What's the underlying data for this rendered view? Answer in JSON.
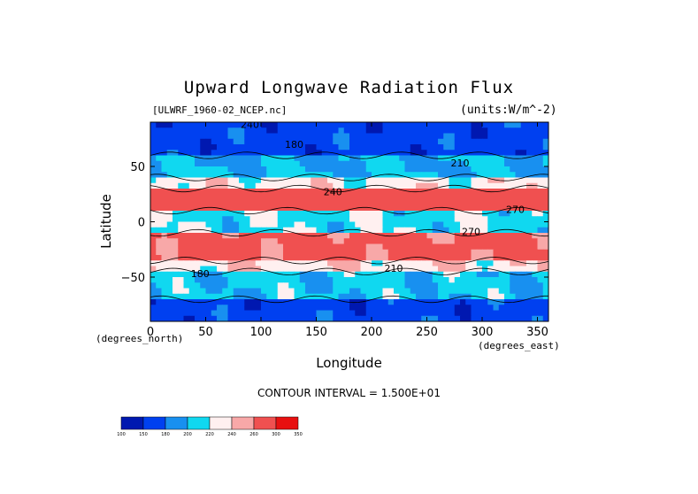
{
  "chart_data": {
    "type": "heatmap",
    "title": "Upward Longwave Radiation Flux",
    "source_label": "[ULWRF_1960-02_NCEP.nc]",
    "units_label": "(units:W/m^-2)",
    "xlabel": "Longitude",
    "ylabel": "Latitude",
    "x_unit_label": "(degrees_east)",
    "y_unit_label": "(degrees_north)",
    "xlim": [
      0,
      360
    ],
    "ylim": [
      -90,
      90
    ],
    "x_ticks": [
      "0",
      "50",
      "100",
      "150",
      "200",
      "250",
      "300",
      "350"
    ],
    "y_ticks": [
      "50",
      "0",
      "-50"
    ],
    "contour_interval_label": "CONTOUR INTERVAL = 1.500E+01",
    "contour_labels": [
      "180",
      "210",
      "240",
      "270"
    ],
    "colorbar": {
      "levels": [
        "100",
        "150",
        "180",
        "200",
        "220",
        "240",
        "260",
        "300",
        "350"
      ],
      "colors": [
        "#0018b0",
        "#0040f0",
        "#1890f0",
        "#10d8f0",
        "#fff0f0",
        "#f8a8a8",
        "#f05050",
        "#e81010"
      ]
    },
    "latitude_bands": [
      {
        "lat": [
          60,
          90
        ],
        "value": 165
      },
      {
        "lat": [
          40,
          60
        ],
        "value": 200
      },
      {
        "lat": [
          30,
          40
        ],
        "value": 230
      },
      {
        "lat": [
          10,
          30
        ],
        "value": 280
      },
      {
        "lat": [
          -10,
          10
        ],
        "value": 215
      },
      {
        "lat": [
          -35,
          -10
        ],
        "value": 270
      },
      {
        "lat": [
          -45,
          -35
        ],
        "value": 235
      },
      {
        "lat": [
          -70,
          -45
        ],
        "value": 205
      },
      {
        "lat": [
          -90,
          -70
        ],
        "value": 165
      }
    ]
  }
}
